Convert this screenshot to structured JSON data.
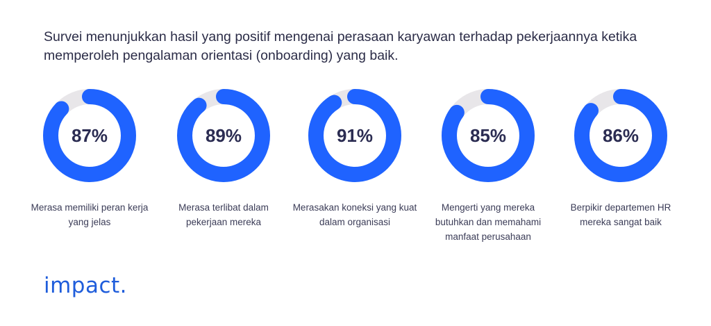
{
  "header": {
    "headline": "Survei menunjukkan hasil yang positif mengenai perasaan karyawan terhadap pekerjaannya ketika memperoleh pengalaman orientasi (onboarding) yang baik."
  },
  "chart_data": [
    {
      "type": "pie",
      "value": 87,
      "label": "87%",
      "caption": "Merasa memiliki peran kerja yang jelas"
    },
    {
      "type": "pie",
      "value": 89,
      "label": "89%",
      "caption": "Merasa terlibat dalam pekerjaan mereka"
    },
    {
      "type": "pie",
      "value": 91,
      "label": "91%",
      "caption": "Merasakan koneksi yang kuat dalam organisasi"
    },
    {
      "type": "pie",
      "value": 85,
      "label": "85%",
      "caption": "Mengerti yang mereka butuhkan dan memahami manfaat perusahaan"
    },
    {
      "type": "pie",
      "value": 86,
      "label": "86%",
      "caption": "Berpikir departemen HR mereka sangat baik"
    }
  ],
  "colors": {
    "filled": "#1f63ff",
    "track": "#e8e6e9"
  },
  "brand": {
    "logo_text": "impact."
  }
}
